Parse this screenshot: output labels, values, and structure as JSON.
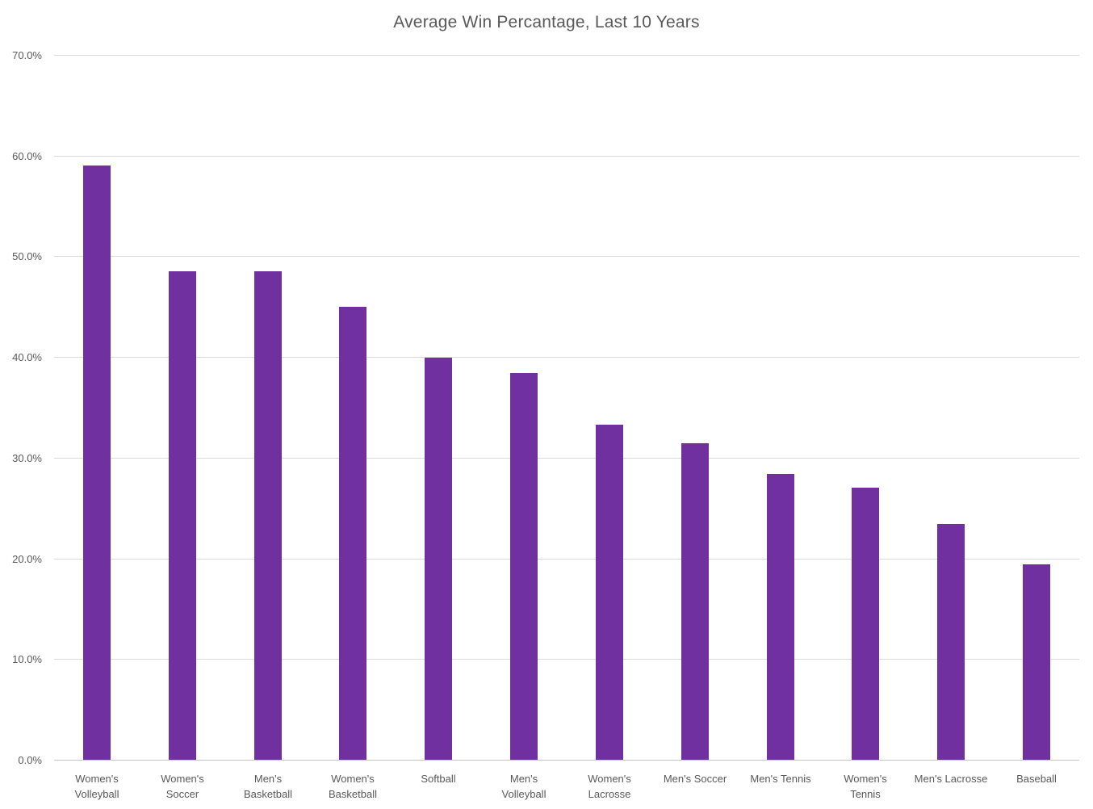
{
  "chart_data": {
    "type": "bar",
    "title": "Average Win Percantage, Last 10 Years",
    "categories": [
      "Women's Volleyball",
      "Women's Soccer",
      "Men's Basketball",
      "Women's Basketball",
      "Softball",
      "Men's Volleyball",
      "Women's Lacrosse",
      "Men's Soccer",
      "Men's Tennis",
      "Women's Tennis",
      "Men's Lacrosse",
      "Baseball"
    ],
    "category_label_lines": [
      [
        "Women's",
        "Volleyball"
      ],
      [
        "Women's",
        "Soccer"
      ],
      [
        "Men's",
        "Basketball"
      ],
      [
        "Women's",
        "Basketball"
      ],
      [
        "Softball"
      ],
      [
        "Men's",
        "Volleyball"
      ],
      [
        "Women's",
        "Lacrosse"
      ],
      [
        "Men's Soccer"
      ],
      [
        "Men's Tennis"
      ],
      [
        "Women's",
        "Tennis"
      ],
      [
        "Men's Lacrosse"
      ],
      [
        "Baseball"
      ]
    ],
    "values": [
      59.0,
      48.5,
      48.5,
      45.0,
      39.9,
      38.4,
      33.3,
      31.4,
      28.4,
      27.0,
      23.4,
      19.4
    ],
    "value_unit": "percent",
    "xlabel": "",
    "ylabel": "",
    "ylim": [
      0,
      70
    ],
    "ytick_step": 10,
    "ytick_labels": [
      "0.0%",
      "10.0%",
      "20.0%",
      "30.0%",
      "40.0%",
      "50.0%",
      "60.0%",
      "70.0%"
    ],
    "grid": "horizontal",
    "legend_position": "none",
    "bar_color": "#7030A0",
    "gridline_color": "#d9d9d9",
    "axis_line_color": "#c6c6c6",
    "text_color": "#595959"
  }
}
